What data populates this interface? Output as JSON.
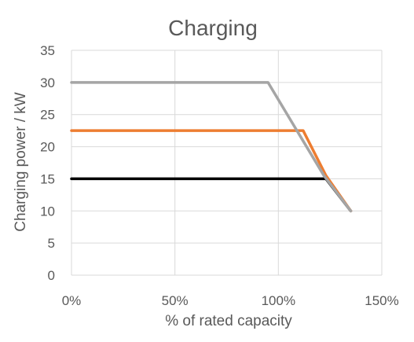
{
  "chart_data": {
    "type": "line",
    "title": "Charging",
    "xlabel": "% of rated capacity",
    "ylabel": "Charging power / kW",
    "xlim": [
      0,
      150
    ],
    "ylim": [
      0,
      35
    ],
    "x_ticks": [
      "0%",
      "50%",
      "100%",
      "150%"
    ],
    "y_ticks": [
      "0",
      "5",
      "10",
      "15",
      "20",
      "25",
      "30",
      "35"
    ],
    "grid": true,
    "legend": "none",
    "series": [
      {
        "color": "#000000",
        "points": [
          [
            0,
            15
          ],
          [
            123,
            15
          ],
          [
            135,
            10
          ]
        ]
      },
      {
        "color": "#ED7D31",
        "points": [
          [
            0,
            22.5
          ],
          [
            112,
            22.5
          ],
          [
            123,
            15.5
          ],
          [
            135,
            10
          ]
        ]
      },
      {
        "color": "#A5A5A5",
        "points": [
          [
            0,
            30
          ],
          [
            95,
            30
          ],
          [
            122,
            15.5
          ],
          [
            135,
            10
          ]
        ]
      }
    ]
  }
}
